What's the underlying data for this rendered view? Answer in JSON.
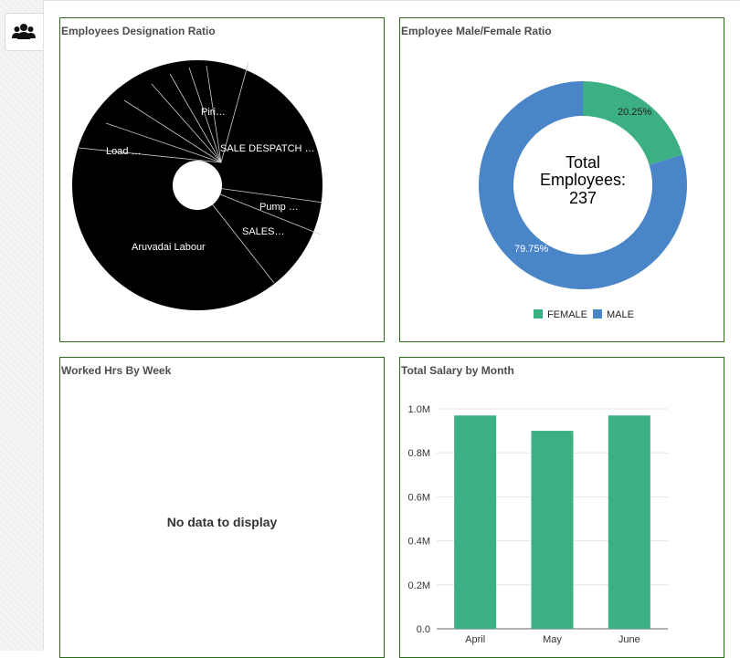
{
  "nav": {
    "active_icon": "users-icon"
  },
  "panels": {
    "designation": {
      "title": "Employees Designation Ratio",
      "labels": [
        "Piri…",
        "SALE DESPATCH …",
        "Pump …",
        "SALES…",
        "Aruvadai Labour",
        "Load …"
      ],
      "slice_color": "#000000"
    },
    "gender": {
      "title": "Employee Male/Female Ratio",
      "center_line1": "Total",
      "center_line2": "Employees:",
      "center_line3": "237",
      "female_pct_label": "20.25%",
      "male_pct_label": "79.75%",
      "legend": [
        {
          "label": "FEMALE",
          "color": "#3cb083"
        },
        {
          "label": "MALE",
          "color": "#4a85c8"
        }
      ]
    },
    "worked_hrs": {
      "title": "Worked Hrs By Week",
      "empty_message": "No data to display"
    },
    "salary": {
      "title": "Total Salary by Month"
    }
  },
  "chart_data": [
    {
      "type": "pie",
      "title": "Employee Male/Female Ratio",
      "categories": [
        "FEMALE",
        "MALE"
      ],
      "values": [
        20.25,
        79.75
      ],
      "colors": [
        "#3cb083",
        "#4a85c8"
      ]
    },
    {
      "type": "bar",
      "title": "Total Salary by Month",
      "categories": [
        "April",
        "May",
        "June"
      ],
      "values": [
        0.97,
        0.9,
        0.97
      ],
      "ylim": [
        0,
        1.0
      ],
      "yticks": [
        "0.0",
        "0.2M",
        "0.4M",
        "0.6M",
        "0.8M",
        "1.0M"
      ],
      "bar_color": "#3cb083",
      "grid": true
    }
  ]
}
